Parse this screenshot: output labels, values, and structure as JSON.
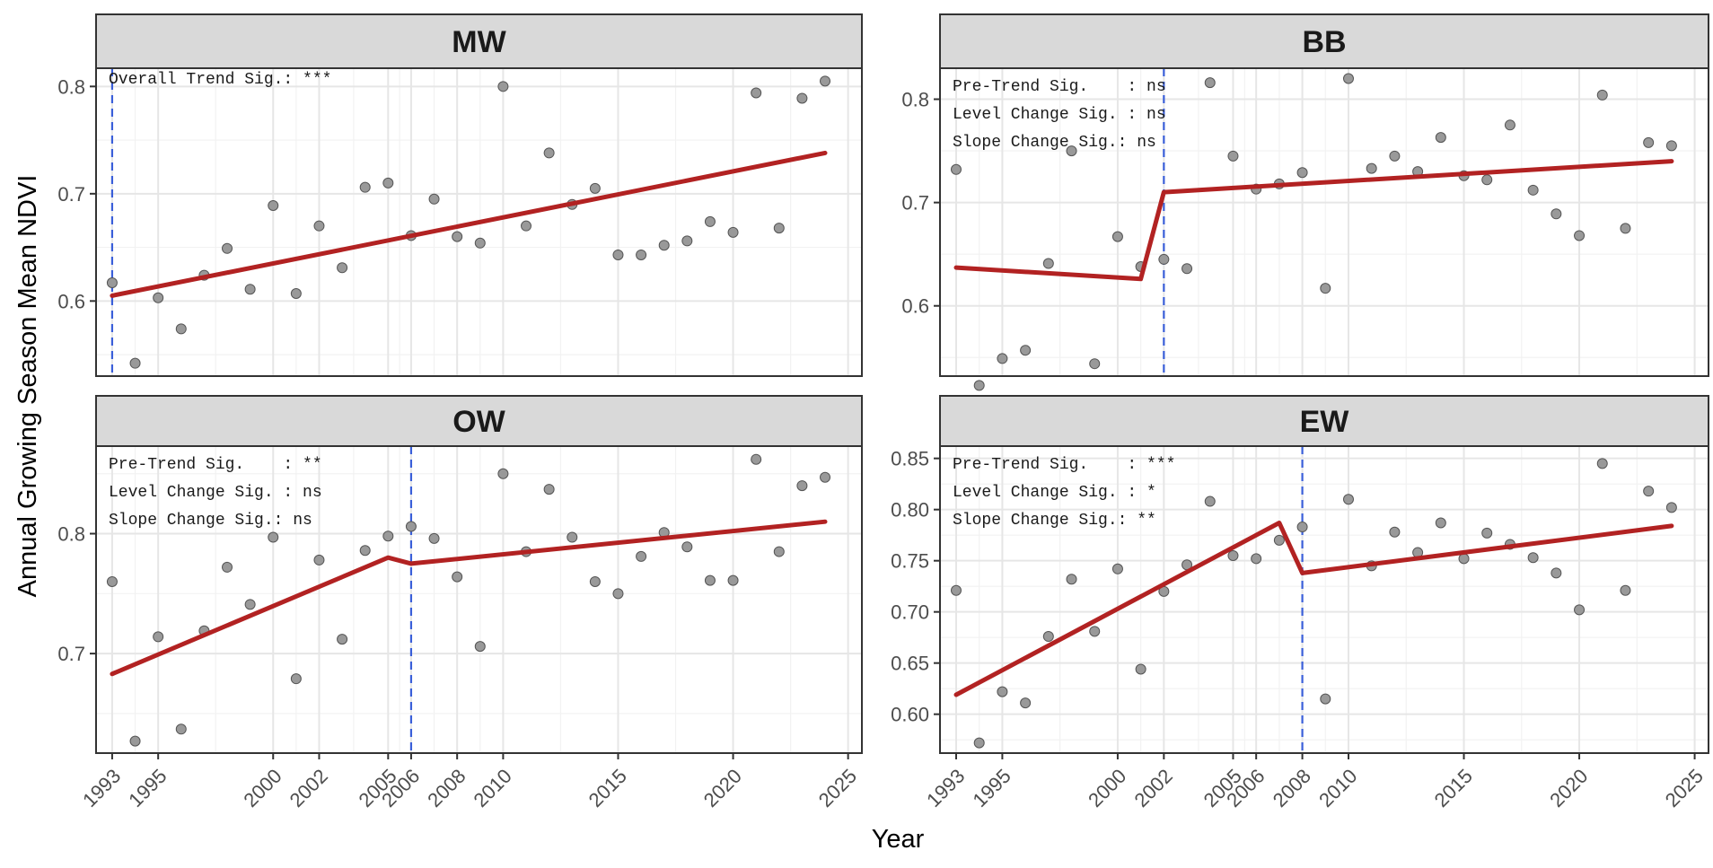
{
  "figure": {
    "ylabel": "Annual Growing Season Mean NDVI",
    "xlabel": "Year"
  },
  "colors": {
    "point": "#999999",
    "point_stroke": "#555555",
    "trend": "#b22222",
    "breakpoint": "#3a5fd9",
    "strip_fill": "#d9d9d9",
    "grid_major": "#e6e6e6",
    "grid_minor": "#f2f2f2",
    "panel_border": "#333333"
  },
  "chart_data": [
    {
      "type": "scatter",
      "panel": "MW",
      "title": "MW",
      "annotations": [
        "Overall Trend Sig.: ***"
      ],
      "xlim": [
        1992.3,
        2025.6
      ],
      "ylim": [
        0.53,
        0.817
      ],
      "x_ticks": [
        "1993",
        "1995",
        "2000",
        "2002",
        "2005",
        "2006",
        "2008",
        "2010",
        "2015",
        "2020",
        "2025"
      ],
      "y_ticks": [
        "0.6",
        "0.7",
        "0.8"
      ],
      "breakpoint": 1993,
      "points": {
        "x": [
          1993,
          1994,
          1995,
          1996,
          1997,
          1998,
          1999,
          2000,
          2001,
          2002,
          2003,
          2004,
          2005,
          2006,
          2007,
          2008,
          2009,
          2010,
          2011,
          2012,
          2013,
          2014,
          2015,
          2016,
          2017,
          2018,
          2019,
          2020,
          2021,
          2022,
          2023,
          2024
        ],
        "y": [
          0.617,
          0.542,
          0.603,
          0.574,
          0.624,
          0.649,
          0.611,
          0.689,
          0.607,
          0.67,
          0.631,
          0.706,
          0.71,
          0.661,
          0.695,
          0.66,
          0.654,
          0.8,
          0.67,
          0.738,
          0.69,
          0.705,
          0.643,
          0.643,
          0.652,
          0.656,
          0.674,
          0.664,
          0.794,
          0.668,
          0.789,
          0.805
        ]
      },
      "trend": {
        "x": [
          1993,
          2024
        ],
        "y": [
          0.605,
          0.738
        ]
      }
    },
    {
      "type": "scatter",
      "panel": "BB",
      "title": "BB",
      "annotations": [
        "Pre-Trend Sig.    : ns",
        "Level Change Sig. : ns",
        "Slope Change Sig.: ns"
      ],
      "xlim": [
        1992.3,
        2025.6
      ],
      "ylim": [
        0.532,
        0.83
      ],
      "x_ticks": [
        "1993",
        "1995",
        "2000",
        "2002",
        "2005",
        "2006",
        "2008",
        "2010",
        "2015",
        "2020",
        "2025"
      ],
      "y_ticks": [
        "0.6",
        "0.7",
        "0.8"
      ],
      "breakpoint": 2002,
      "points": {
        "x": [
          1993,
          1994,
          1995,
          1996,
          1997,
          1998,
          1999,
          2000,
          2001,
          2002,
          2003,
          2004,
          2005,
          2006,
          2007,
          2008,
          2009,
          2010,
          2011,
          2012,
          2013,
          2014,
          2015,
          2016,
          2017,
          2018,
          2019,
          2020,
          2021,
          2022,
          2023,
          2024
        ],
        "y": [
          0.732,
          0.523,
          0.549,
          0.557,
          0.641,
          0.75,
          0.544,
          0.667,
          0.638,
          0.645,
          0.636,
          0.816,
          0.745,
          0.713,
          0.718,
          0.729,
          0.617,
          0.82,
          0.733,
          0.745,
          0.73,
          0.763,
          0.726,
          0.722,
          0.775,
          0.712,
          0.689,
          0.668,
          0.804,
          0.675,
          0.758,
          0.755
        ]
      },
      "trend": {
        "x": [
          1993,
          2001,
          2002,
          2024
        ],
        "y": [
          0.637,
          0.626,
          0.71,
          0.74
        ]
      }
    },
    {
      "type": "scatter",
      "panel": "OW",
      "title": "OW",
      "annotations": [
        "Pre-Trend Sig.    : **",
        "Level Change Sig. : ns",
        "Slope Change Sig.: ns"
      ],
      "xlim": [
        1992.3,
        2025.6
      ],
      "ylim": [
        0.617,
        0.873
      ],
      "x_ticks": [
        "1993",
        "1995",
        "2000",
        "2002",
        "2005",
        "2006",
        "2008",
        "2010",
        "2015",
        "2020",
        "2025"
      ],
      "y_ticks": [
        "0.7",
        "0.8"
      ],
      "breakpoint": 2006,
      "points": {
        "x": [
          1993,
          1994,
          1995,
          1996,
          1997,
          1998,
          1999,
          2000,
          2001,
          2002,
          2003,
          2004,
          2005,
          2006,
          2007,
          2008,
          2009,
          2010,
          2011,
          2012,
          2013,
          2014,
          2015,
          2016,
          2017,
          2018,
          2019,
          2020,
          2021,
          2022,
          2023,
          2024
        ],
        "y": [
          0.76,
          0.627,
          0.714,
          0.637,
          0.719,
          0.772,
          0.741,
          0.797,
          0.679,
          0.778,
          0.712,
          0.786,
          0.798,
          0.806,
          0.796,
          0.764,
          0.706,
          0.85,
          0.785,
          0.837,
          0.797,
          0.76,
          0.75,
          0.781,
          0.801,
          0.789,
          0.761,
          0.761,
          0.862,
          0.785,
          0.84,
          0.847
        ]
      },
      "trend": {
        "x": [
          1993,
          2005,
          2006,
          2024
        ],
        "y": [
          0.683,
          0.78,
          0.775,
          0.81
        ]
      }
    },
    {
      "type": "scatter",
      "panel": "EW",
      "title": "EW",
      "annotations": [
        "Pre-Trend Sig.    : ***",
        "Level Change Sig. : *",
        "Slope Change Sig.: **"
      ],
      "xlim": [
        1992.3,
        2025.6
      ],
      "ylim": [
        0.562,
        0.862
      ],
      "x_ticks": [
        "1993",
        "1995",
        "2000",
        "2002",
        "2005",
        "2006",
        "2008",
        "2010",
        "2015",
        "2020",
        "2025"
      ],
      "y_ticks": [
        "0.60",
        "0.65",
        "0.70",
        "0.75",
        "0.80",
        "0.85"
      ],
      "breakpoint": 2008,
      "points": {
        "x": [
          1993,
          1994,
          1995,
          1996,
          1997,
          1998,
          1999,
          2000,
          2001,
          2002,
          2003,
          2004,
          2005,
          2006,
          2007,
          2008,
          2009,
          2010,
          2011,
          2012,
          2013,
          2014,
          2015,
          2016,
          2017,
          2018,
          2019,
          2020,
          2021,
          2022,
          2023,
          2024
        ],
        "y": [
          0.721,
          0.572,
          0.622,
          0.611,
          0.676,
          0.732,
          0.681,
          0.742,
          0.644,
          0.72,
          0.746,
          0.808,
          0.755,
          0.752,
          0.77,
          0.783,
          0.615,
          0.81,
          0.745,
          0.778,
          0.758,
          0.787,
          0.752,
          0.777,
          0.766,
          0.753,
          0.738,
          0.702,
          0.845,
          0.721,
          0.818,
          0.802
        ]
      },
      "trend": {
        "x": [
          1993,
          2007,
          2008,
          2024
        ],
        "y": [
          0.619,
          0.787,
          0.738,
          0.784
        ]
      }
    }
  ]
}
